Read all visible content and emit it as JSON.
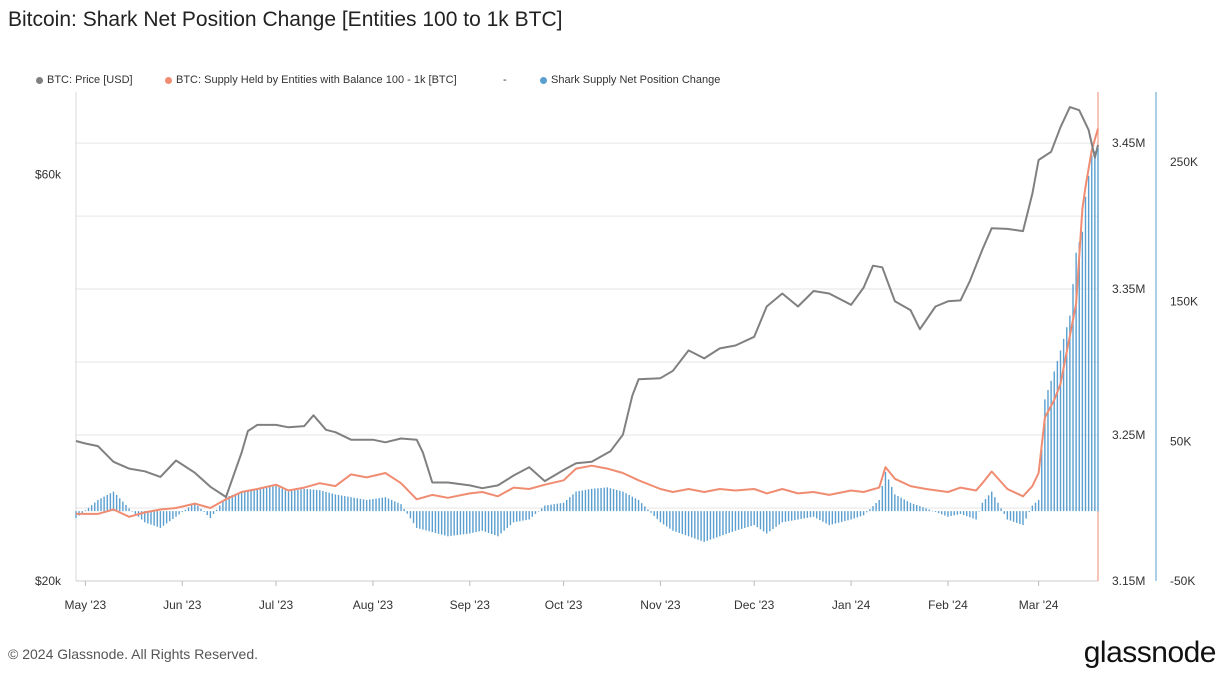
{
  "title": "Bitcoin: Shark Net Position Change [Entities 100 to 1k BTC]",
  "legend": [
    {
      "label": "BTC: Price [USD]",
      "color": "#808080"
    },
    {
      "label": "BTC: Supply Held by Entities with Balance 100 - 1k [BTC]",
      "color": "#f08c72"
    },
    {
      "label": "-",
      "color": ""
    },
    {
      "label": "Shark Supply Net Position Change",
      "color": "#5a9fd0"
    }
  ],
  "footer": "© 2024 Glassnode. All Rights Reserved.",
  "brand": "glassnode",
  "chart_data": {
    "type": "line",
    "title": "Bitcoin: Shark Net Position Change [Entities 100 to 1k BTC]",
    "grid": true,
    "legend_position": "top-left",
    "x_ticks": [
      "May '23",
      "Jun '23",
      "Jul '23",
      "Aug '23",
      "Sep '23",
      "Oct '23",
      "Nov '23",
      "Dec '23",
      "Jan '24",
      "Feb '24",
      "Mar '24"
    ],
    "x_range": [
      "2023-04-28",
      "2024-03-20"
    ],
    "axes": {
      "price": {
        "side": "left",
        "scale": "log",
        "range": [
          20000,
          75000
        ],
        "ticks": [
          {
            "value": 20000,
            "label": "$20k"
          },
          {
            "value": 60000,
            "label": "$60k"
          }
        ]
      },
      "supply": {
        "side": "right-inner",
        "range": [
          3150000,
          3485000
        ],
        "ticks": [
          {
            "value": 3150000,
            "label": "3.15M"
          },
          {
            "value": 3250000,
            "label": "3.25M"
          },
          {
            "value": 3350000,
            "label": "3.35M"
          },
          {
            "value": 3450000,
            "label": "3.45M"
          }
        ]
      },
      "net_change": {
        "side": "right-outer",
        "range": [
          -50000,
          300000
        ],
        "ticks": [
          {
            "value": -50000,
            "label": "-50K"
          },
          {
            "value": 50000,
            "label": "50K"
          },
          {
            "value": 150000,
            "label": "150K"
          },
          {
            "value": 250000,
            "label": "250K"
          }
        ]
      }
    },
    "series": [
      {
        "name": "BTC: Price [USD]",
        "axis": "price",
        "type": "line",
        "color": "#808080",
        "x": [
          "2023-04-28",
          "2023-05-01",
          "2023-05-05",
          "2023-05-10",
          "2023-05-15",
          "2023-05-20",
          "2023-05-25",
          "2023-05-30",
          "2023-06-05",
          "2023-06-10",
          "2023-06-15",
          "2023-06-20",
          "2023-06-22",
          "2023-06-25",
          "2023-07-01",
          "2023-07-05",
          "2023-07-10",
          "2023-07-13",
          "2023-07-17",
          "2023-07-20",
          "2023-07-25",
          "2023-08-01",
          "2023-08-05",
          "2023-08-10",
          "2023-08-15",
          "2023-08-17",
          "2023-08-20",
          "2023-08-25",
          "2023-09-01",
          "2023-09-05",
          "2023-09-10",
          "2023-09-15",
          "2023-09-20",
          "2023-09-25",
          "2023-10-01",
          "2023-10-05",
          "2023-10-10",
          "2023-10-16",
          "2023-10-20",
          "2023-10-23",
          "2023-10-25",
          "2023-11-01",
          "2023-11-05",
          "2023-11-10",
          "2023-11-15",
          "2023-11-20",
          "2023-11-25",
          "2023-12-01",
          "2023-12-05",
          "2023-12-10",
          "2023-12-15",
          "2023-12-20",
          "2023-12-25",
          "2024-01-01",
          "2024-01-05",
          "2024-01-08",
          "2024-01-11",
          "2024-01-15",
          "2024-01-20",
          "2024-01-23",
          "2024-01-28",
          "2024-02-01",
          "2024-02-05",
          "2024-02-08",
          "2024-02-12",
          "2024-02-15",
          "2024-02-20",
          "2024-02-25",
          "2024-02-28",
          "2024-03-01",
          "2024-03-05",
          "2024-03-08",
          "2024-03-11",
          "2024-03-14",
          "2024-03-17",
          "2024-03-19",
          "2024-03-20"
        ],
        "values": [
          29200,
          29000,
          28800,
          27600,
          27100,
          26900,
          26500,
          27700,
          26800,
          25800,
          25100,
          28300,
          30000,
          30500,
          30500,
          30300,
          30400,
          31300,
          30100,
          29900,
          29300,
          29300,
          29100,
          29400,
          29300,
          28300,
          26100,
          26100,
          25900,
          25700,
          25900,
          26600,
          27200,
          26200,
          27000,
          27500,
          27600,
          28400,
          29700,
          33000,
          34500,
          34600,
          35300,
          37300,
          36500,
          37500,
          37800,
          38700,
          42000,
          43500,
          42000,
          43800,
          43500,
          42200,
          44200,
          46900,
          46700,
          42600,
          41600,
          39500,
          42000,
          42600,
          42700,
          45000,
          49000,
          51900,
          51800,
          51500,
          57000,
          62400,
          63800,
          68200,
          72000,
          71400,
          67700,
          62800,
          65000
        ]
      },
      {
        "name": "BTC: Supply Held by Entities with Balance 100 - 1k [BTC]",
        "axis": "supply",
        "type": "line",
        "color": "#f08c72",
        "x": [
          "2023-04-28",
          "2023-05-05",
          "2023-05-10",
          "2023-05-15",
          "2023-05-20",
          "2023-05-25",
          "2023-05-30",
          "2023-06-05",
          "2023-06-10",
          "2023-06-15",
          "2023-06-20",
          "2023-06-25",
          "2023-07-01",
          "2023-07-05",
          "2023-07-10",
          "2023-07-15",
          "2023-07-20",
          "2023-07-25",
          "2023-07-30",
          "2023-08-05",
          "2023-08-10",
          "2023-08-15",
          "2023-08-20",
          "2023-08-25",
          "2023-09-01",
          "2023-09-05",
          "2023-09-10",
          "2023-09-15",
          "2023-09-20",
          "2023-09-25",
          "2023-10-01",
          "2023-10-05",
          "2023-10-10",
          "2023-10-15",
          "2023-10-20",
          "2023-10-25",
          "2023-11-01",
          "2023-11-05",
          "2023-11-10",
          "2023-11-15",
          "2023-11-20",
          "2023-11-25",
          "2023-12-01",
          "2023-12-05",
          "2023-12-10",
          "2023-12-15",
          "2023-12-20",
          "2023-12-25",
          "2024-01-01",
          "2024-01-05",
          "2024-01-10",
          "2024-01-12",
          "2024-01-15",
          "2024-01-20",
          "2024-01-25",
          "2024-02-01",
          "2024-02-05",
          "2024-02-10",
          "2024-02-12",
          "2024-02-15",
          "2024-02-20",
          "2024-02-25",
          "2024-02-28",
          "2024-03-01",
          "2024-03-03",
          "2024-03-06",
          "2024-03-08",
          "2024-03-11",
          "2024-03-13",
          "2024-03-15",
          "2024-03-16",
          "2024-03-18",
          "2024-03-20"
        ],
        "values": [
          3196000,
          3196000,
          3199000,
          3194000,
          3197000,
          3199000,
          3200000,
          3203000,
          3200000,
          3206000,
          3211000,
          3213000,
          3216000,
          3212000,
          3214000,
          3217000,
          3215000,
          3223000,
          3221000,
          3224000,
          3217000,
          3206000,
          3209000,
          3207000,
          3210000,
          3211000,
          3208000,
          3214000,
          3213000,
          3216000,
          3219000,
          3227000,
          3229000,
          3227000,
          3224000,
          3219000,
          3213000,
          3211000,
          3213000,
          3211000,
          3213000,
          3212000,
          3213000,
          3210000,
          3213000,
          3210000,
          3211000,
          3209000,
          3212000,
          3211000,
          3214000,
          3228000,
          3220000,
          3215000,
          3213000,
          3211000,
          3214000,
          3212000,
          3217000,
          3225000,
          3213000,
          3208000,
          3215000,
          3224000,
          3262000,
          3274000,
          3285000,
          3318000,
          3340000,
          3405000,
          3420000,
          3445000,
          3460000
        ]
      },
      {
        "name": "Shark Supply Net Position Change",
        "axis": "net_change",
        "type": "bar",
        "color": "#5a9fd0",
        "x": [
          "2023-04-28",
          "2023-05-05",
          "2023-05-10",
          "2023-05-15",
          "2023-05-20",
          "2023-05-25",
          "2023-05-30",
          "2023-06-05",
          "2023-06-10",
          "2023-06-15",
          "2023-06-20",
          "2023-06-25",
          "2023-07-01",
          "2023-07-05",
          "2023-07-10",
          "2023-07-15",
          "2023-07-20",
          "2023-07-25",
          "2023-07-30",
          "2023-08-05",
          "2023-08-10",
          "2023-08-15",
          "2023-08-20",
          "2023-08-25",
          "2023-09-01",
          "2023-09-05",
          "2023-09-10",
          "2023-09-15",
          "2023-09-20",
          "2023-09-25",
          "2023-10-01",
          "2023-10-05",
          "2023-10-10",
          "2023-10-15",
          "2023-10-20",
          "2023-10-25",
          "2023-11-01",
          "2023-11-05",
          "2023-11-10",
          "2023-11-15",
          "2023-11-20",
          "2023-11-25",
          "2023-12-01",
          "2023-12-05",
          "2023-12-10",
          "2023-12-15",
          "2023-12-20",
          "2023-12-25",
          "2024-01-01",
          "2024-01-05",
          "2024-01-10",
          "2024-01-12",
          "2024-01-15",
          "2024-01-20",
          "2024-01-25",
          "2024-02-01",
          "2024-02-05",
          "2024-02-10",
          "2024-02-12",
          "2024-02-15",
          "2024-02-20",
          "2024-02-25",
          "2024-02-28",
          "2024-03-01",
          "2024-03-03",
          "2024-03-06",
          "2024-03-08",
          "2024-03-11",
          "2024-03-13",
          "2024-03-15",
          "2024-03-16",
          "2024-03-18",
          "2024-03-20"
        ],
        "values": [
          -5000,
          8000,
          14000,
          2000,
          -8000,
          -12000,
          -4000,
          6000,
          -5000,
          10000,
          14000,
          16000,
          18000,
          14000,
          16000,
          15000,
          12000,
          10000,
          8000,
          10000,
          5000,
          -12000,
          -15000,
          -18000,
          -16000,
          -14000,
          -18000,
          -8000,
          -6000,
          4000,
          6000,
          14000,
          16000,
          17000,
          14000,
          8000,
          -8000,
          -14000,
          -18000,
          -22000,
          -18000,
          -14000,
          -10000,
          -16000,
          -8000,
          -6000,
          -4000,
          -10000,
          -6000,
          -3000,
          8000,
          28000,
          12000,
          6000,
          2000,
          -4000,
          -2000,
          -6000,
          6000,
          14000,
          -6000,
          -10000,
          4000,
          8000,
          80000,
          100000,
          115000,
          140000,
          185000,
          200000,
          225000,
          255000,
          260000
        ]
      }
    ]
  }
}
